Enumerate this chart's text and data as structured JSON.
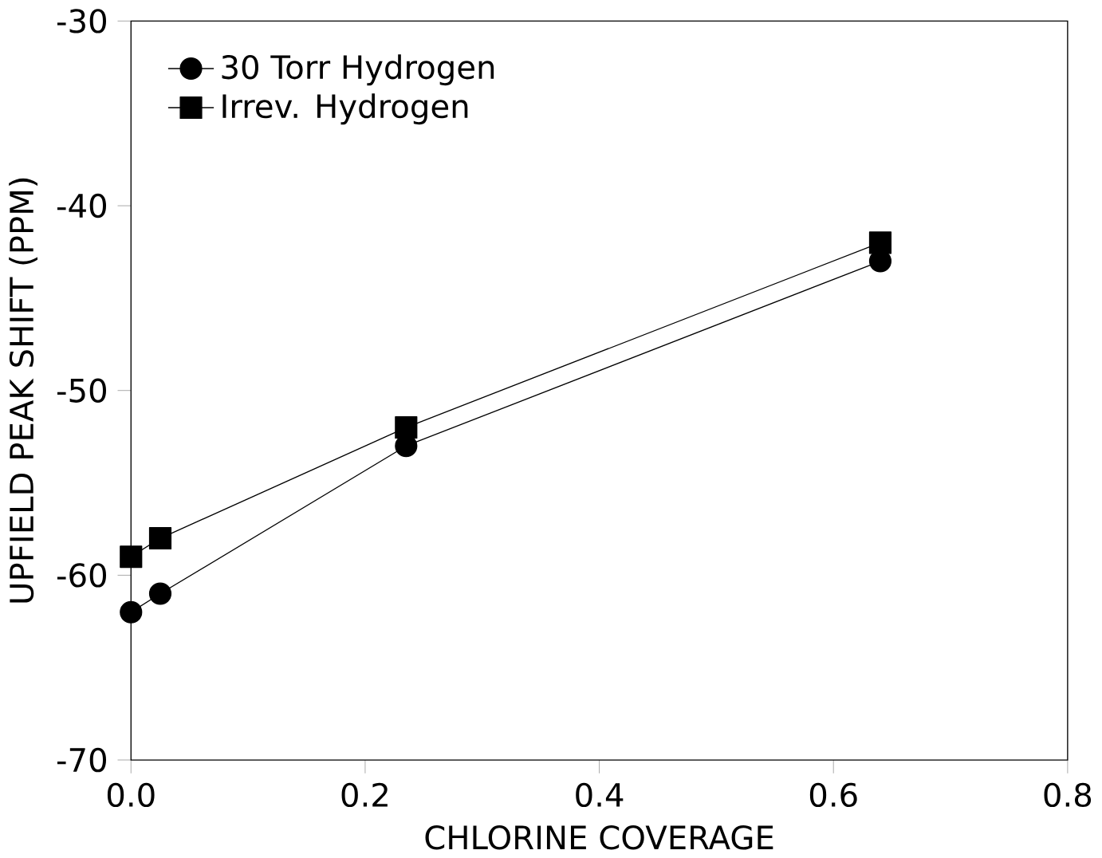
{
  "chart_data": {
    "type": "line",
    "xlabel": "CHLORINE COVERAGE",
    "ylabel": "UPFIELD PEAK SHIFT (PPM)",
    "x": [
      0.0,
      0.025,
      0.235,
      0.64
    ],
    "series": [
      {
        "name": "30 Torr Hydrogen",
        "color": "#000000",
        "marker": "circle",
        "values": [
          -62,
          -61,
          -53,
          -43
        ]
      },
      {
        "name": "Irrev. Hydrogen",
        "color": "#000000",
        "marker": "square",
        "values": [
          -59,
          -58,
          -52,
          -42
        ]
      }
    ],
    "xlim": [
      0.0,
      0.8
    ],
    "xticks": [
      {
        "value": 0.0,
        "label": "0.0"
      },
      {
        "value": 0.2,
        "label": "0.2"
      },
      {
        "value": 0.4,
        "label": "0.4"
      },
      {
        "value": 0.6,
        "label": "0.6"
      },
      {
        "value": 0.8,
        "label": "0.8"
      }
    ],
    "ylim": [
      -70,
      -30
    ],
    "yticks": [
      -70,
      -60,
      -50,
      -40,
      -30
    ],
    "grid": false,
    "legend": "top left",
    "line_style": "solid"
  }
}
